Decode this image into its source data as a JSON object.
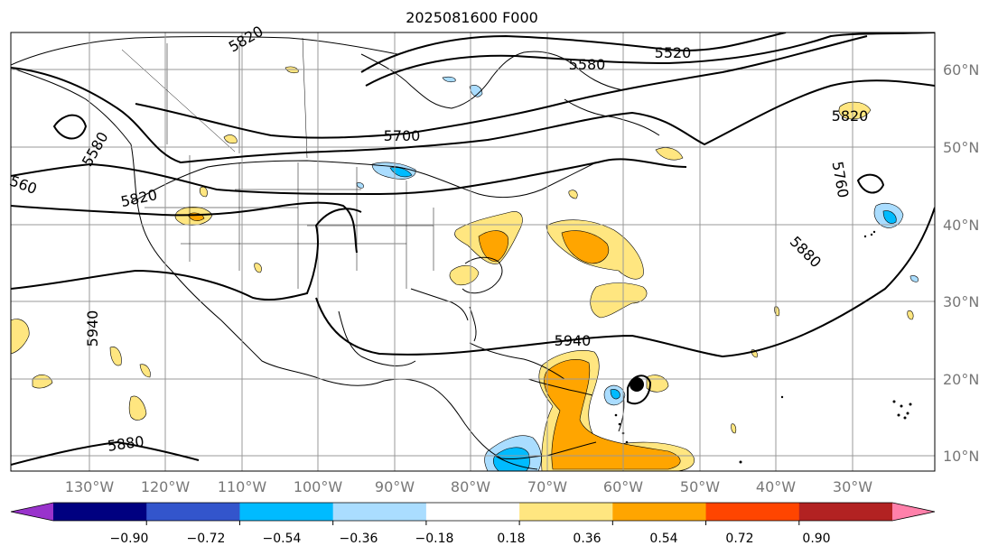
{
  "title": "2025081600 F000",
  "lon_labels": [
    "130°W",
    "120°W",
    "110°W",
    "100°W",
    "90°W",
    "80°W",
    "70°W",
    "60°W",
    "50°W",
    "40°W",
    "30°W"
  ],
  "lat_labels": [
    "60°N",
    "50°N",
    "40°N",
    "30°N",
    "20°N",
    "10°N"
  ],
  "contour_labels": [
    "5520",
    "5580",
    "5700",
    "5820",
    "5880",
    "5940",
    "5940",
    "5880",
    "5760",
    "5820",
    "5580",
    "560",
    "5820"
  ],
  "colorbar": {
    "ticks": [
      "−0.90",
      "−0.72",
      "−0.54",
      "−0.36",
      "−0.18",
      "0.18",
      "0.36",
      "0.54",
      "0.72",
      "0.90"
    ],
    "colors": [
      "#9933cc",
      "#000080",
      "#3355cc",
      "#00bbff",
      "#aaddff",
      "#ffffff",
      "#ffe680",
      "#ffa500",
      "#ff4500",
      "#b22222",
      "#ff80aa"
    ]
  }
}
